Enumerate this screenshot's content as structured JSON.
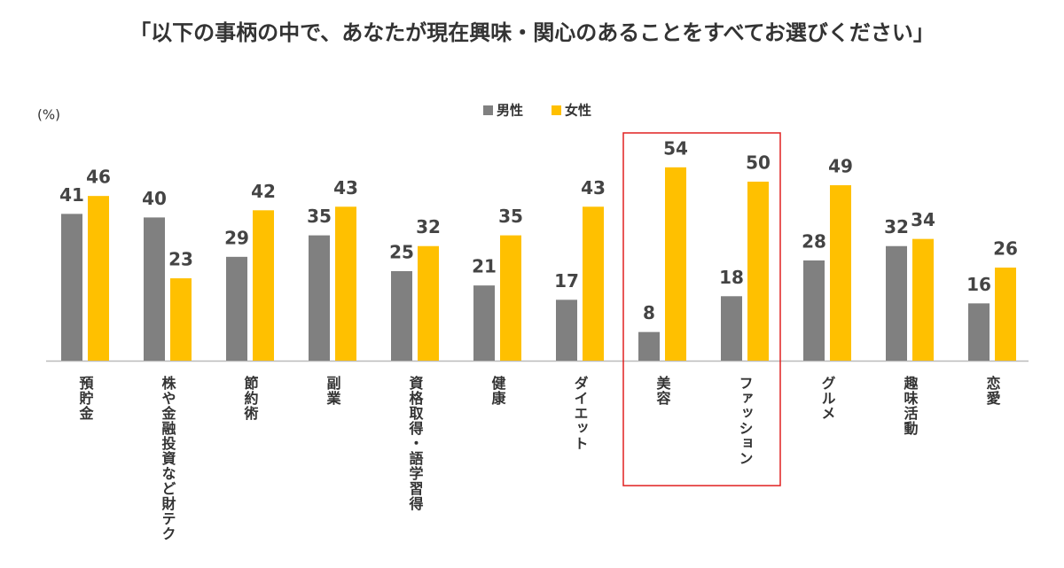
{
  "chart_data": {
    "type": "bar",
    "title": "「以下の事柄の中で、あなたが現在興味・関心のあることをすべてお選びください」",
    "y_label": "(%)",
    "categories": [
      "預貯金",
      "株や金融投資など財テク",
      "節約術",
      "副業",
      "資格取得・語学習得",
      "健康",
      "ダイエット",
      "美容",
      "ファッション",
      "グルメ",
      "趣味活動",
      "恋愛"
    ],
    "series": [
      {
        "name": "男性",
        "color": "#808080",
        "values": [
          41,
          40,
          29,
          35,
          25,
          21,
          17,
          8,
          18,
          28,
          32,
          16
        ]
      },
      {
        "name": "女性",
        "color": "#FFC000",
        "values": [
          46,
          23,
          42,
          43,
          32,
          35,
          43,
          54,
          50,
          49,
          34,
          26
        ]
      }
    ]
  }
}
